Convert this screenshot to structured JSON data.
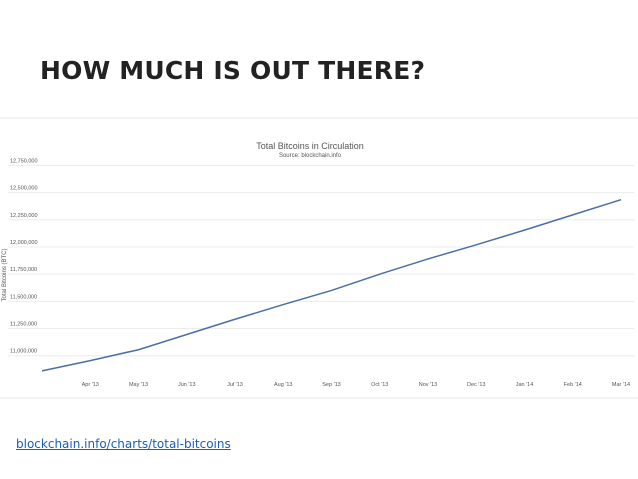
{
  "slide_title": "HOW MUCH IS OUT THERE?",
  "link": "blockchain.info/charts/total-bitcoins",
  "chart_data": {
    "type": "line",
    "title": "Total Bitcoins in Circulation",
    "subtitle": "Source: blockchain.info",
    "y_label": "Total Bitcoins (BTC)",
    "categories": [
      null,
      "Apr '13",
      "May '13",
      "Jun '13",
      "Jul '13",
      "Aug '13",
      "Sep '13",
      "Oct '13",
      "Nov '13",
      "Dec '13",
      "Jan '14",
      "Feb '14",
      "Mar '14"
    ],
    "series": [
      {
        "name": "Total Bitcoins",
        "color": "#4a6fa5",
        "values": [
          10860000,
          10955000,
          11055000,
          11195000,
          11335000,
          11470000,
          11600000,
          11750000,
          11890000,
          12020000,
          12155000,
          12295000,
          12435000
        ]
      }
    ],
    "ylim": [
      10850000,
      12800000
    ],
    "yticks": [
      {
        "value": 11000000,
        "label": "11,000,000"
      },
      {
        "value": 11250000,
        "label": "11,250,000"
      },
      {
        "value": 11500000,
        "label": "11,500,000"
      },
      {
        "value": 11750000,
        "label": "11,750,000"
      },
      {
        "value": 12000000,
        "label": "12,000,000"
      },
      {
        "value": 12250000,
        "label": "12,250,000"
      },
      {
        "value": 12500000,
        "label": "12,500,000"
      },
      {
        "value": 12750000,
        "label": "12,750,000"
      }
    ],
    "grid": true
  }
}
